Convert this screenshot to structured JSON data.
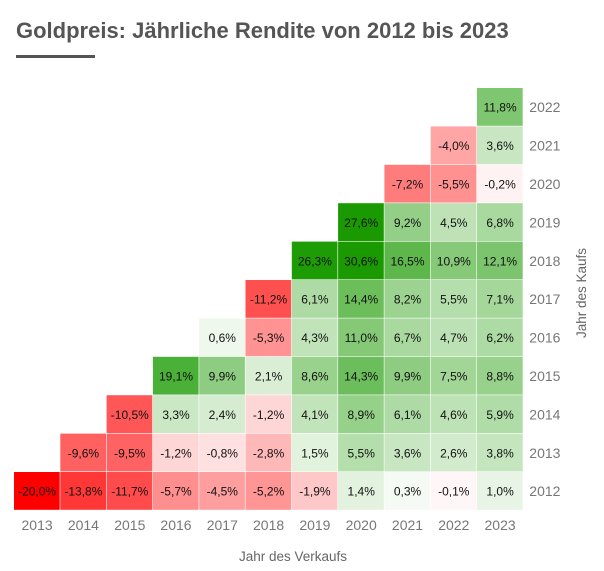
{
  "header": {
    "title": "Goldpreis: Jährliche Rendite von 2012 bis 2023"
  },
  "chart_data": {
    "type": "heatmap",
    "title": "Goldpreis: Jährliche Rendite von 2012 bis 2023",
    "xlabel": "Jahr des Verkaufs",
    "ylabel": "Jahr des Kaufs",
    "x_categories": [
      "2013",
      "2014",
      "2015",
      "2016",
      "2017",
      "2018",
      "2019",
      "2020",
      "2021",
      "2022",
      "2023"
    ],
    "y_categories": [
      "2022",
      "2021",
      "2020",
      "2019",
      "2018",
      "2017",
      "2016",
      "2015",
      "2014",
      "2013",
      "2012"
    ],
    "value_unit": "%",
    "color_scale": {
      "negative": "#ff0000",
      "zero": "#ffffff",
      "positive": "#1a9a00"
    },
    "rows": [
      {
        "kauf": "2022",
        "values": [
          null,
          null,
          null,
          null,
          null,
          null,
          null,
          null,
          null,
          null,
          11.8
        ]
      },
      {
        "kauf": "2021",
        "values": [
          null,
          null,
          null,
          null,
          null,
          null,
          null,
          null,
          null,
          -4.0,
          3.6
        ]
      },
      {
        "kauf": "2020",
        "values": [
          null,
          null,
          null,
          null,
          null,
          null,
          null,
          null,
          -7.2,
          -5.5,
          -0.2
        ]
      },
      {
        "kauf": "2019",
        "values": [
          null,
          null,
          null,
          null,
          null,
          null,
          null,
          27.6,
          9.2,
          4.5,
          6.8
        ]
      },
      {
        "kauf": "2018",
        "values": [
          null,
          null,
          null,
          null,
          null,
          null,
          26.3,
          30.6,
          16.5,
          10.9,
          12.1
        ]
      },
      {
        "kauf": "2017",
        "values": [
          null,
          null,
          null,
          null,
          null,
          -11.2,
          6.1,
          14.4,
          8.2,
          5.5,
          7.1
        ]
      },
      {
        "kauf": "2016",
        "values": [
          null,
          null,
          null,
          null,
          0.6,
          -5.3,
          4.3,
          11.0,
          6.7,
          4.7,
          6.2
        ]
      },
      {
        "kauf": "2015",
        "values": [
          null,
          null,
          null,
          19.1,
          9.9,
          2.1,
          8.6,
          14.3,
          9.9,
          7.5,
          8.8
        ]
      },
      {
        "kauf": "2014",
        "values": [
          null,
          null,
          -10.5,
          3.3,
          2.4,
          -1.2,
          4.1,
          8.9,
          6.1,
          4.6,
          5.9
        ]
      },
      {
        "kauf": "2013",
        "values": [
          null,
          -9.6,
          -9.5,
          -1.2,
          -0.8,
          -2.8,
          1.5,
          5.5,
          3.6,
          2.6,
          3.8
        ]
      },
      {
        "kauf": "2012",
        "values": [
          -20.0,
          -13.8,
          -11.7,
          -5.7,
          -4.5,
          -5.2,
          -1.9,
          1.4,
          0.3,
          -0.1,
          1.0
        ]
      }
    ],
    "cell_labels": [
      [
        "",
        "",
        "",
        "",
        "",
        "",
        "",
        "",
        "",
        "",
        "11,8%"
      ],
      [
        "",
        "",
        "",
        "",
        "",
        "",
        "",
        "",
        "",
        "-4,0%",
        "3,6%"
      ],
      [
        "",
        "",
        "",
        "",
        "",
        "",
        "",
        "",
        "-7,2%",
        "-5,5%",
        "-0,2%"
      ],
      [
        "",
        "",
        "",
        "",
        "",
        "",
        "",
        "27,6%",
        "9,2%",
        "4,5%",
        "6,8%"
      ],
      [
        "",
        "",
        "",
        "",
        "",
        "",
        "26,3%",
        "30,6%",
        "16,5%",
        "10,9%",
        "12,1%"
      ],
      [
        "",
        "",
        "",
        "",
        "",
        "-11,2%",
        "6,1%",
        "14,4%",
        "8,2%",
        "5,5%",
        "7,1%"
      ],
      [
        "",
        "",
        "",
        "",
        "0,6%",
        "-5,3%",
        "4,3%",
        "11,0%",
        "6,7%",
        "4,7%",
        "6,2%"
      ],
      [
        "",
        "",
        "",
        "19,1%",
        "9,9%",
        "2,1%",
        "8,6%",
        "14,3%",
        "9,9%",
        "7,5%",
        "8,8%"
      ],
      [
        "",
        "",
        "-10,5%",
        "3,3%",
        "2,4%",
        "-1,2%",
        "4,1%",
        "8,9%",
        "6,1%",
        "4,6%",
        "5,9%"
      ],
      [
        "",
        "-9,6%",
        "-9,5%",
        "-1,2%",
        "-0,8%",
        "-2,8%",
        "1,5%",
        "5,5%",
        "3,6%",
        "2,6%",
        "3,8%"
      ],
      [
        "-20,0%",
        "-13,8%",
        "-11,7%",
        "-5,7%",
        "-4,5%",
        "-5,2%",
        "-1,9%",
        "1,4%",
        "0,3%",
        "-0,1%",
        "1,0%"
      ]
    ]
  }
}
